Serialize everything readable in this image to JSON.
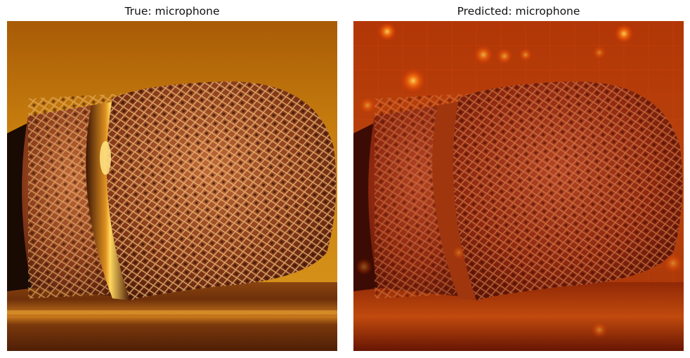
{
  "figure": {
    "panels": [
      {
        "title": "True: microphone",
        "image": "microphone-photo"
      },
      {
        "title": "Predicted: microphone",
        "image": "microphone-photo-with-saliency-heatmap-overlay"
      }
    ]
  },
  "colors": {
    "background_amber": "#c77a12",
    "table_wood": "#7a3a0c",
    "mesh_copper": "#b0552a",
    "heatmap_overlay": "#c21e00",
    "hotspot_yellow": "#ffd84a"
  }
}
